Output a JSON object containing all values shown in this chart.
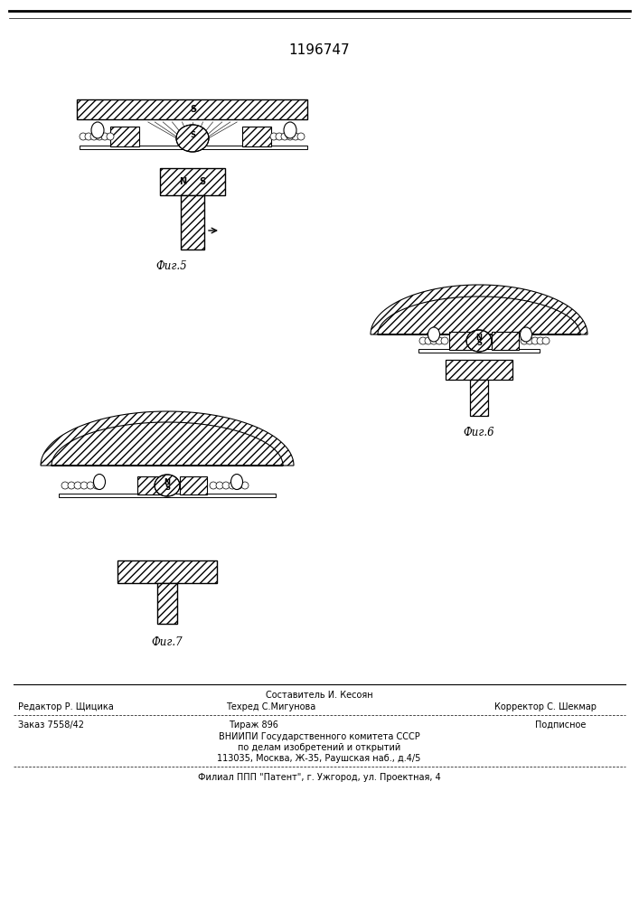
{
  "title": "1196747",
  "title_fontsize": 11,
  "bg_color": "#ffffff",
  "fig_width": 7.07,
  "fig_height": 10.0,
  "fig5_label": "Фиг.5",
  "fig6_label": "Фиг.6",
  "fig7_label": "Фиг.7",
  "line_color": "#000000",
  "footer": {
    "line1": "Составитель И. Кесоян",
    "line2_left": "Редактор Р. Щицика",
    "line2_mid": "Техред С.Мигунова",
    "line2_right": "Корректор С. Шекмар",
    "line3_left": "Заказ 7558/42",
    "line3_mid": "Тираж 896",
    "line3_right": "Подписное",
    "line4": "ВНИИПИ Государственного комитета СССР",
    "line5": "по делам изобретений и открытий",
    "line6": "113035, Москва, Ж-35, Раушская наб., д.4/5",
    "line7": "Филиал ППП \"Патент\", г. Ужгород, ул. Проектная, 4"
  }
}
